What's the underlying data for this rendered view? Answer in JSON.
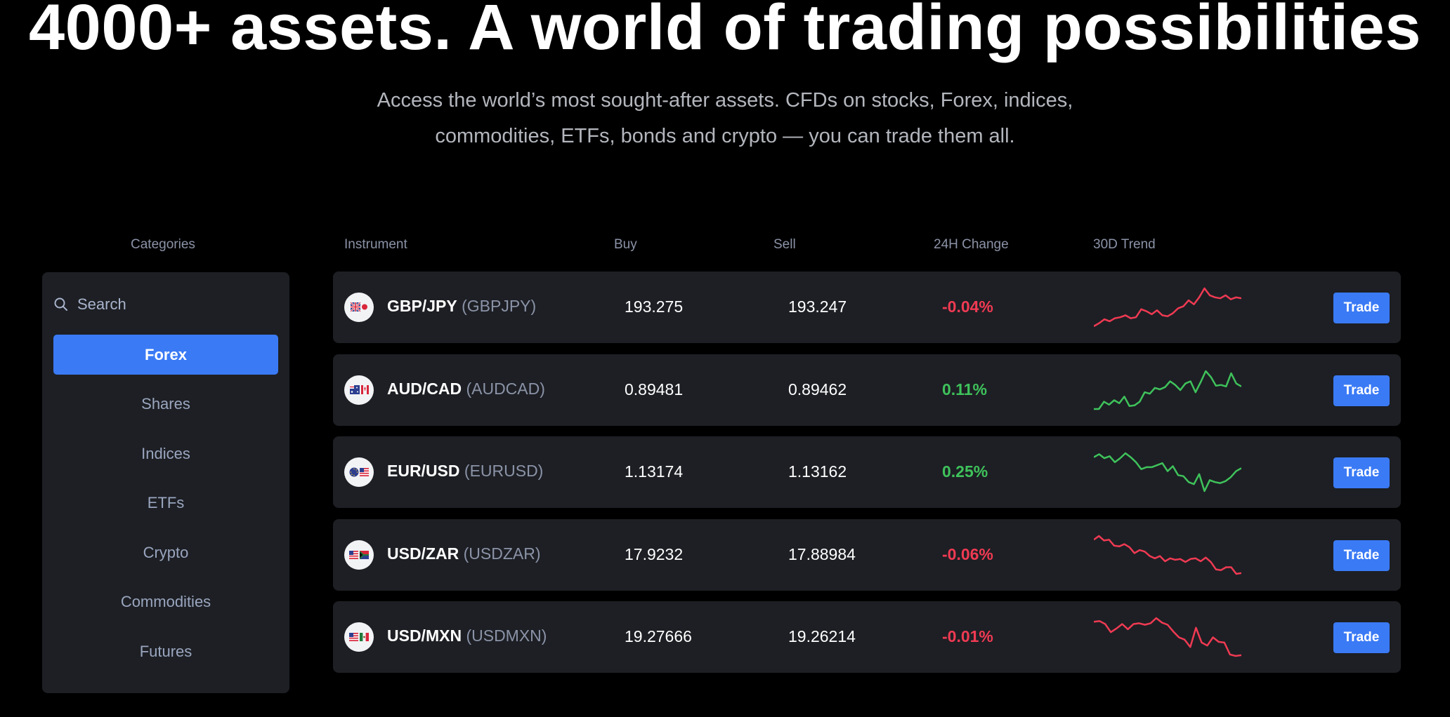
{
  "hero": {
    "title": "4000+ assets. A world of trading possibilities",
    "subtitle_line1": "Access the world’s most sought-after assets. CFDs on stocks, Forex, indices,",
    "subtitle_line2": "commodities, ETFs, bonds and crypto — you can trade them all."
  },
  "columns": {
    "categories": "Categories",
    "instrument": "Instrument",
    "buy": "Buy",
    "sell": "Sell",
    "change": "24H Change",
    "trend": "30D Trend"
  },
  "search": {
    "placeholder": "Search",
    "icon": "search-icon"
  },
  "categories": [
    {
      "label": "Forex",
      "active": true
    },
    {
      "label": "Shares",
      "active": false
    },
    {
      "label": "Indices",
      "active": false
    },
    {
      "label": "ETFs",
      "active": false
    },
    {
      "label": "Crypto",
      "active": false
    },
    {
      "label": "Commodities",
      "active": false
    },
    {
      "label": "Futures",
      "active": false
    }
  ],
  "colors": {
    "accent": "#3a7af5",
    "negative": "#f03a53",
    "positive": "#3fc25b",
    "panel": "#1d1f24",
    "background": "#000000"
  },
  "instruments": [
    {
      "name": "GBP/JPY",
      "code": "(GBPJPY)",
      "buy": "193.275",
      "sell": "193.247",
      "change": "-0.04%",
      "direction": "down",
      "flag_icons": [
        "uk-flag-icon",
        "japan-flag-icon"
      ],
      "trade_label": "Trade",
      "trend": [
        2,
        5,
        9,
        7,
        10,
        11,
        13,
        10,
        11,
        19,
        17,
        14,
        18,
        13,
        12,
        15,
        20,
        22,
        28,
        24,
        31,
        40,
        33,
        31,
        30,
        33,
        29,
        31,
        30
      ]
    },
    {
      "name": "AUD/CAD",
      "code": "(AUDCAD)",
      "buy": "0.89481",
      "sell": "0.89462",
      "change": "0.11%",
      "direction": "up",
      "flag_icons": [
        "australia-flag-icon",
        "canada-flag-icon"
      ],
      "trade_label": "Trade",
      "trend": [
        0,
        0,
        10,
        6,
        12,
        8,
        17,
        4,
        5,
        10,
        23,
        21,
        29,
        27,
        30,
        38,
        33,
        26,
        35,
        38,
        23,
        37,
        52,
        44,
        32,
        33,
        31,
        49,
        35,
        31
      ]
    },
    {
      "name": "EUR/USD",
      "code": "(EURUSD)",
      "buy": "1.13174",
      "sell": "1.13162",
      "change": "0.25%",
      "direction": "up",
      "flag_icons": [
        "eu-flag-icon",
        "us-flag-icon"
      ],
      "trade_label": "Trade",
      "trend": [
        34,
        37,
        33,
        35,
        29,
        33,
        38,
        34,
        29,
        22,
        24,
        24,
        26,
        28,
        20,
        25,
        16,
        15,
        9,
        7,
        17,
        0,
        11,
        9,
        8,
        10,
        14,
        20,
        23
      ]
    },
    {
      "name": "USD/ZAR",
      "code": "(USDZAR)",
      "buy": "17.9232",
      "sell": "17.88984",
      "change": "-0.06%",
      "direction": "down",
      "flag_icons": [
        "us-flag-icon",
        "south-africa-flag-icon"
      ],
      "trade_label": "Trade",
      "trend": [
        48,
        53,
        47,
        48,
        40,
        39,
        42,
        38,
        30,
        34,
        32,
        26,
        23,
        26,
        19,
        23,
        21,
        22,
        18,
        22,
        23,
        19,
        24,
        18,
        8,
        7,
        11,
        11,
        2,
        3
      ]
    },
    {
      "name": "USD/MXN",
      "code": "(USDMXN)",
      "buy": "19.27666",
      "sell": "19.26214",
      "change": "-0.01%",
      "direction": "down",
      "flag_icons": [
        "us-flag-icon",
        "mexico-flag-icon"
      ],
      "trade_label": "Trade",
      "trend": [
        46,
        47,
        43,
        32,
        37,
        43,
        36,
        43,
        44,
        42,
        44,
        51,
        45,
        42,
        33,
        25,
        22,
        12,
        38,
        18,
        14,
        25,
        19,
        18,
        2,
        0,
        1
      ]
    }
  ]
}
